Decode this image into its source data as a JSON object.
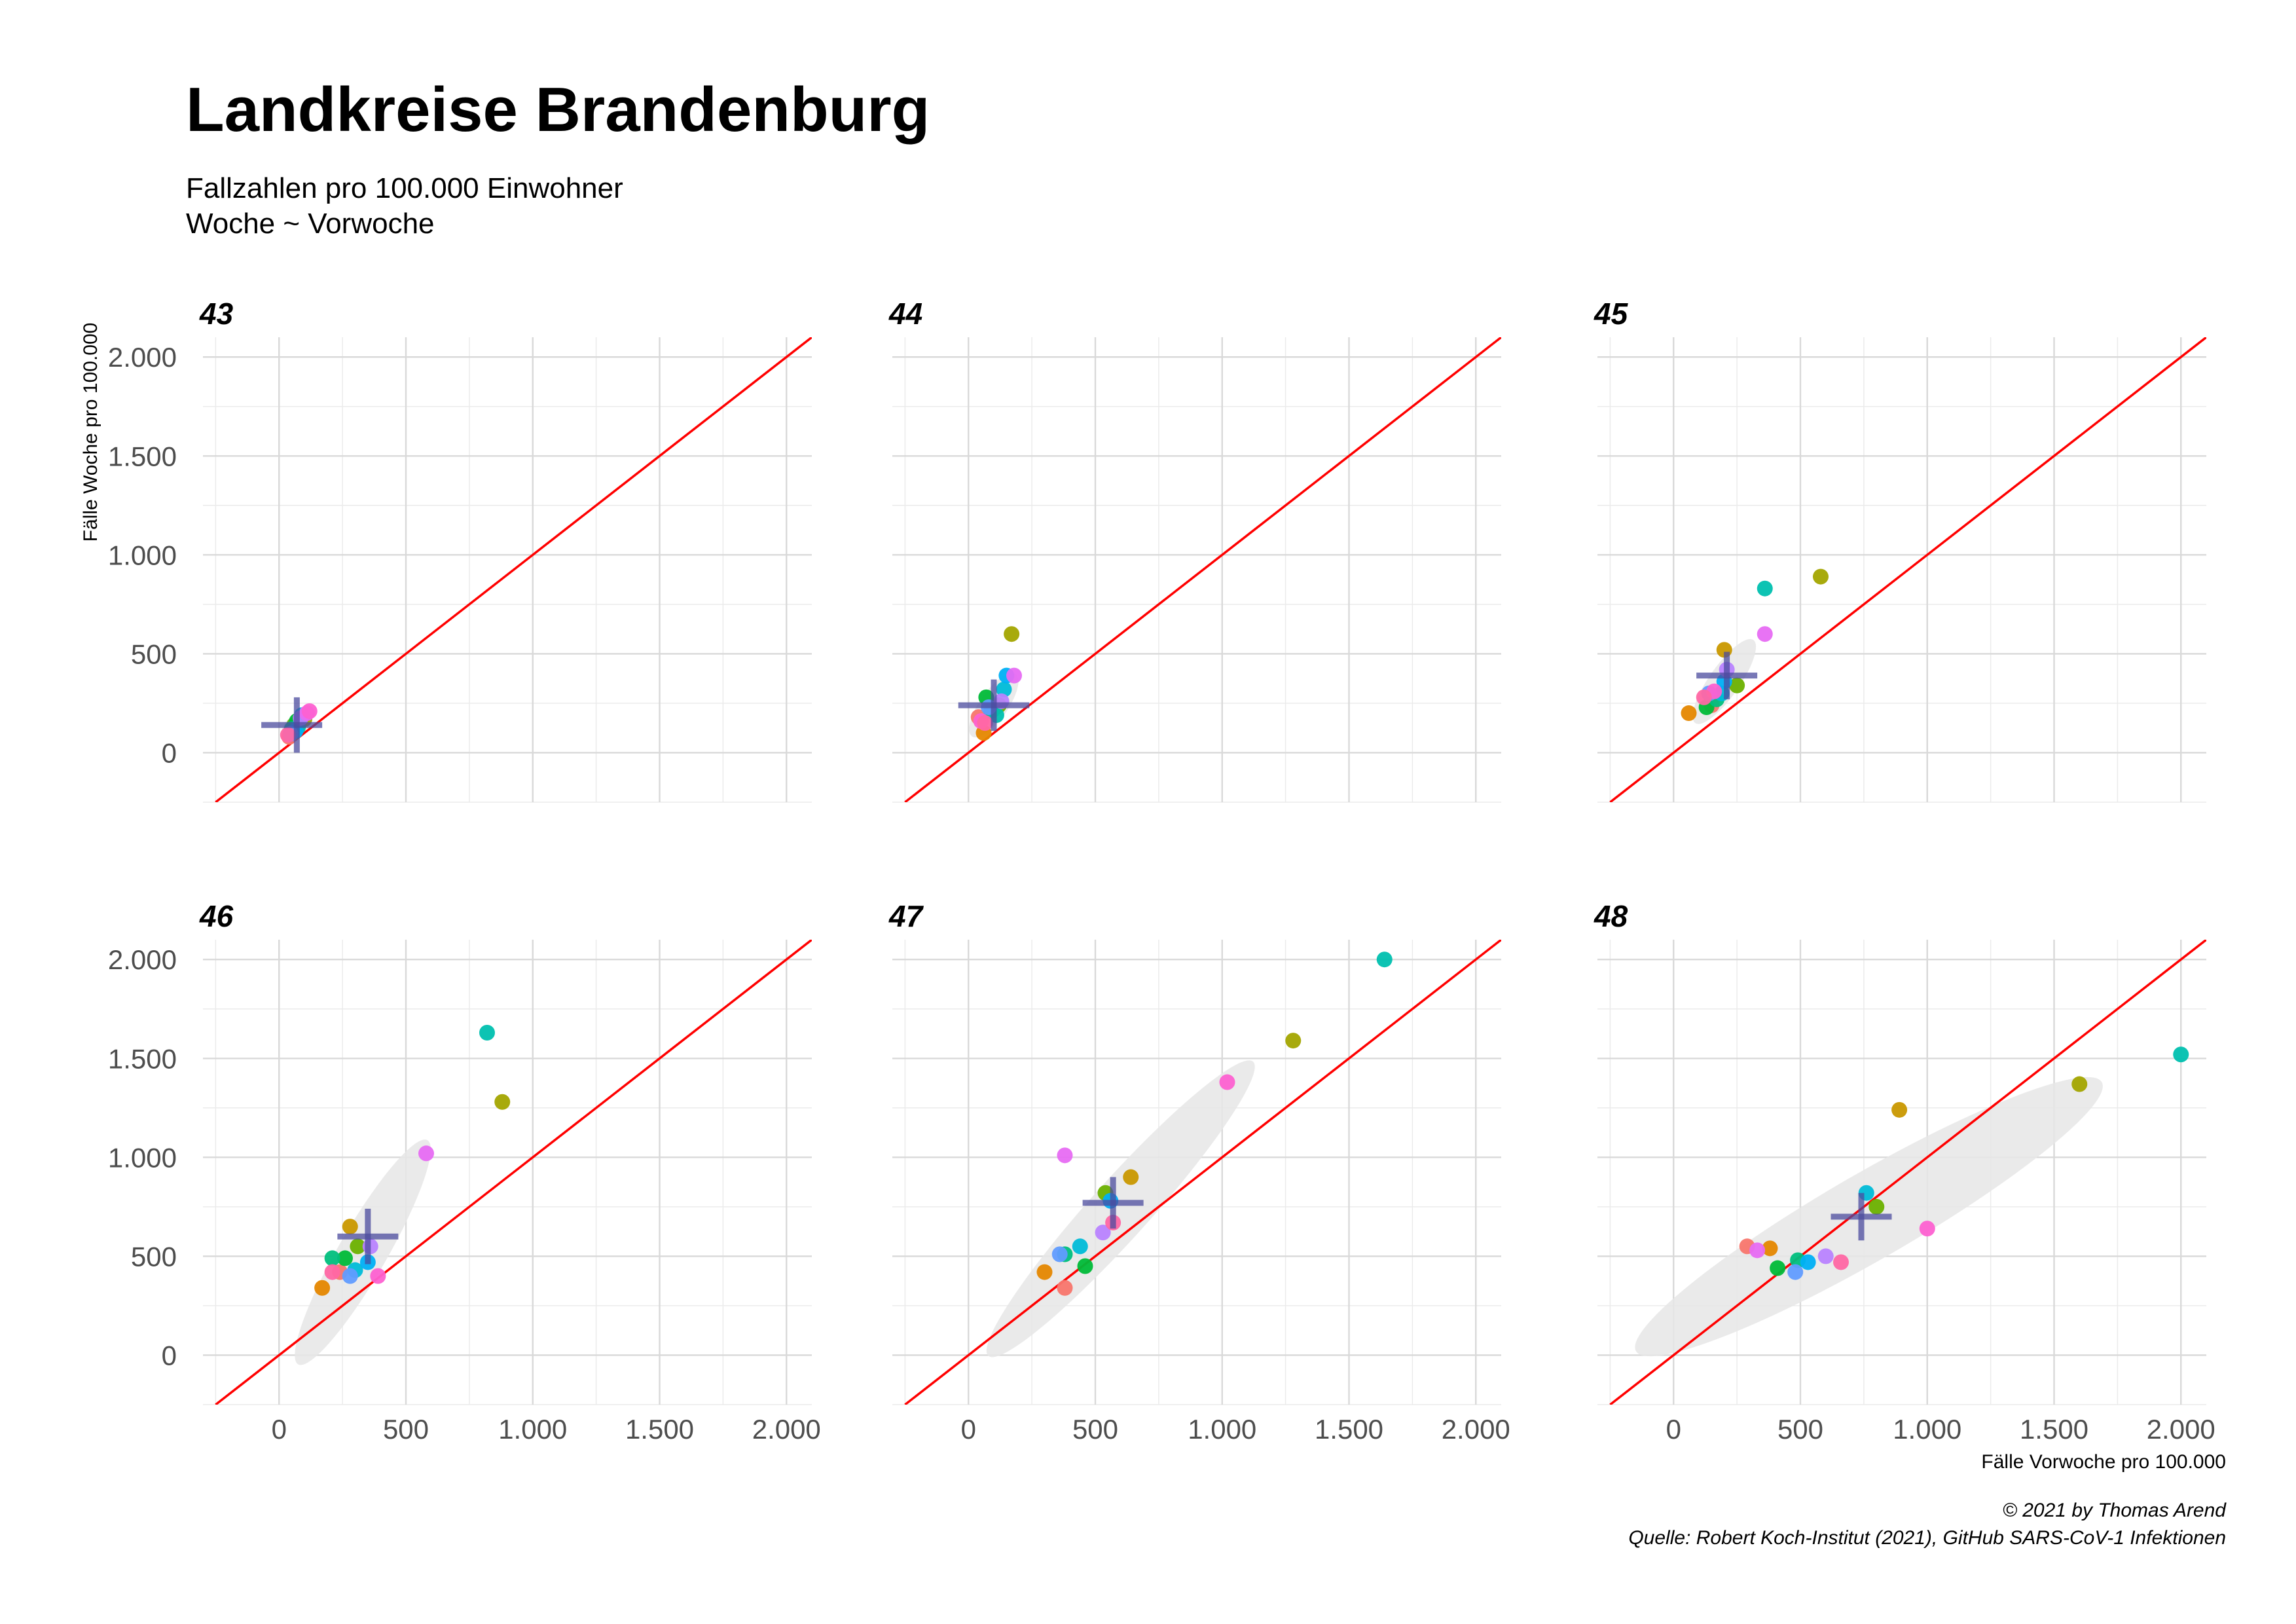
{
  "title": "Landkreise Brandenburg",
  "subtitle_line1": "Fallzahlen pro 100.000 Einwohner",
  "subtitle_line2": "Woche ~ Vorwoche",
  "xlabel": "Fälle Vorwoche pro 100.000",
  "ylabel": "Fälle Woche pro 100.000",
  "caption_line1": "© 2021 by Thomas Arend",
  "caption_line2": "Quelle: Robert Koch-Institut (2021), GitHub SARS-CoV-1 Infektionen",
  "colors": {
    "reference_line": "#ff0000",
    "mean_cross": "#4b4b9e",
    "ellipse": "#e6e6e6",
    "points": [
      "#F8766D",
      "#E58700",
      "#C99800",
      "#A3A500",
      "#6BB100",
      "#00BA38",
      "#00BF7D",
      "#00C0AF",
      "#00BCD8",
      "#00B0F6",
      "#619CFF",
      "#B983FF",
      "#E76BF3",
      "#FD61D1",
      "#FF67A4"
    ]
  },
  "chart_data": {
    "type": "scatter",
    "xlim": [
      -300,
      2100
    ],
    "ylim": [
      -250,
      2100
    ],
    "x_ticks": [
      0,
      500,
      1000,
      1500,
      2000
    ],
    "x_tick_labels": [
      "0",
      "500",
      "1.000",
      "1.500",
      "2.000"
    ],
    "y_ticks": [
      0,
      500,
      1000,
      1500,
      2000
    ],
    "y_tick_labels": [
      "0",
      "500",
      "1.000",
      "1.500",
      "2.000"
    ],
    "reference_line": "y = x",
    "grid": true,
    "facets": [
      {
        "label": "43",
        "points": [
          [
            40,
            80,
            0
          ],
          [
            55,
            100,
            1
          ],
          [
            80,
            150,
            2
          ],
          [
            100,
            170,
            3
          ],
          [
            60,
            140,
            4
          ],
          [
            70,
            160,
            5
          ],
          [
            50,
            120,
            6
          ],
          [
            75,
            130,
            7
          ],
          [
            90,
            190,
            8
          ],
          [
            65,
            110,
            9
          ],
          [
            45,
            95,
            10
          ],
          [
            85,
            175,
            11
          ],
          [
            110,
            200,
            12
          ],
          [
            120,
            210,
            13
          ],
          [
            35,
            90,
            14
          ]
        ],
        "mean": [
          70,
          140
        ],
        "cross": {
          "x": [
            -70,
            170
          ],
          "y": [
            0,
            280
          ]
        },
        "ellipse": {
          "cx": 70,
          "cy": 140,
          "rx": 70,
          "ry": 40,
          "angle": 40
        }
      },
      {
        "label": "44",
        "points": [
          [
            40,
            180,
            0
          ],
          [
            60,
            100,
            1
          ],
          [
            100,
            220,
            2
          ],
          [
            170,
            600,
            3
          ],
          [
            120,
            240,
            4
          ],
          [
            70,
            280,
            5
          ],
          [
            90,
            210,
            6
          ],
          [
            110,
            190,
            7
          ],
          [
            140,
            320,
            8
          ],
          [
            150,
            390,
            9
          ],
          [
            80,
            230,
            10
          ],
          [
            130,
            260,
            11
          ],
          [
            180,
            390,
            12
          ],
          [
            50,
            160,
            13
          ],
          [
            65,
            150,
            14
          ]
        ],
        "mean": [
          100,
          240
        ],
        "cross": {
          "x": [
            -40,
            240
          ],
          "y": [
            110,
            370
          ]
        },
        "ellipse": {
          "cx": 100,
          "cy": 240,
          "rx": 150,
          "ry": 55,
          "angle": 55
        }
      },
      {
        "label": "45",
        "points": [
          [
            150,
            240,
            0
          ],
          [
            60,
            200,
            1
          ],
          [
            200,
            520,
            2
          ],
          [
            580,
            890,
            3
          ],
          [
            250,
            340,
            4
          ],
          [
            130,
            230,
            5
          ],
          [
            170,
            270,
            6
          ],
          [
            360,
            830,
            7
          ],
          [
            190,
            300,
            8
          ],
          [
            200,
            360,
            9
          ],
          [
            140,
            300,
            10
          ],
          [
            210,
            420,
            11
          ],
          [
            360,
            600,
            12
          ],
          [
            160,
            310,
            13
          ],
          [
            120,
            280,
            14
          ]
        ],
        "mean": [
          210,
          390
        ],
        "cross": {
          "x": [
            90,
            330
          ],
          "y": [
            270,
            510
          ]
        },
        "ellipse": {
          "cx": 200,
          "cy": 360,
          "rx": 200,
          "ry": 60,
          "angle": 55
        }
      },
      {
        "label": "46",
        "points": [
          [
            240,
            420,
            0
          ],
          [
            170,
            340,
            1
          ],
          [
            280,
            650,
            2
          ],
          [
            880,
            1280,
            3
          ],
          [
            310,
            550,
            4
          ],
          [
            260,
            490,
            5
          ],
          [
            210,
            490,
            6
          ],
          [
            820,
            1630,
            7
          ],
          [
            300,
            430,
            8
          ],
          [
            350,
            470,
            9
          ],
          [
            280,
            400,
            10
          ],
          [
            360,
            550,
            11
          ],
          [
            580,
            1020,
            12
          ],
          [
            390,
            400,
            13
          ],
          [
            210,
            420,
            14
          ]
        ],
        "mean": [
          350,
          600
        ],
        "cross": {
          "x": [
            230,
            470
          ],
          "y": [
            460,
            740
          ]
        },
        "ellipse": {
          "cx": 330,
          "cy": 520,
          "rx": 510,
          "ry": 95,
          "angle": 60
        }
      },
      {
        "label": "47",
        "points": [
          [
            380,
            340,
            0
          ],
          [
            300,
            420,
            1
          ],
          [
            640,
            900,
            2
          ],
          [
            1280,
            1590,
            3
          ],
          [
            540,
            820,
            4
          ],
          [
            460,
            450,
            5
          ],
          [
            380,
            510,
            6
          ],
          [
            1640,
            2000,
            7
          ],
          [
            440,
            550,
            8
          ],
          [
            560,
            780,
            9
          ],
          [
            360,
            510,
            10
          ],
          [
            530,
            620,
            11
          ],
          [
            380,
            1010,
            12
          ],
          [
            1020,
            1380,
            13
          ],
          [
            570,
            670,
            14
          ]
        ],
        "mean": [
          570,
          770
        ],
        "cross": {
          "x": [
            450,
            690
          ],
          "y": [
            640,
            900
          ]
        },
        "ellipse": {
          "cx": 600,
          "cy": 740,
          "rx": 780,
          "ry": 115,
          "angle": 48
        }
      },
      {
        "label": "48",
        "points": [
          [
            290,
            550,
            0
          ],
          [
            380,
            540,
            1
          ],
          [
            890,
            1240,
            2
          ],
          [
            1600,
            1370,
            3
          ],
          [
            800,
            750,
            4
          ],
          [
            410,
            440,
            5
          ],
          [
            490,
            480,
            6
          ],
          [
            2000,
            1520,
            7
          ],
          [
            760,
            820,
            8
          ],
          [
            530,
            470,
            9
          ],
          [
            480,
            420,
            10
          ],
          [
            600,
            500,
            11
          ],
          [
            330,
            530,
            12
          ],
          [
            1000,
            640,
            13
          ],
          [
            660,
            470,
            14
          ]
        ],
        "mean": [
          740,
          700
        ],
        "cross": {
          "x": [
            620,
            860
          ],
          "y": [
            580,
            820
          ]
        },
        "ellipse": {
          "cx": 770,
          "cy": 700,
          "rx": 1060,
          "ry": 170,
          "angle": 30
        }
      }
    ]
  }
}
